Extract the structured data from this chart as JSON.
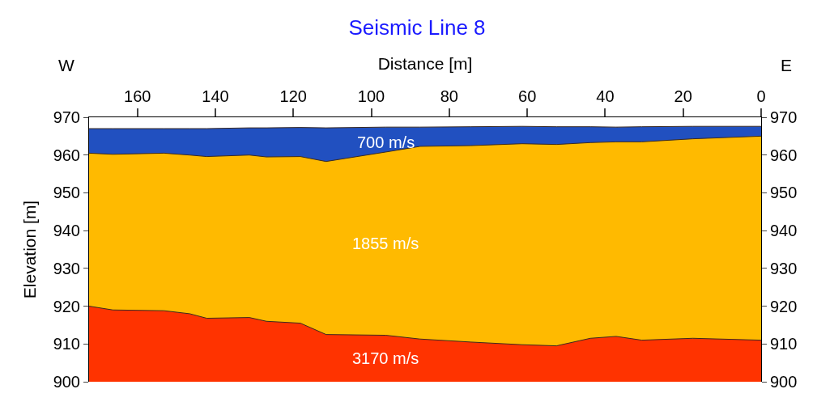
{
  "chart_data": {
    "type": "area",
    "title": "Seismic Line 8",
    "xlabel": "Distance [m]",
    "ylabel": "Elevation [m]",
    "x": [
      172.4,
      166.3,
      153.2,
      146.6,
      142.2,
      131.3,
      126.9,
      118.2,
      111.6,
      96.3,
      87.5,
      74.4,
      61.3,
      52.5,
      43.8,
      37.2,
      30.6,
      17.5,
      0
    ],
    "series": [
      {
        "name": "700 m/s",
        "color": "#2150c0",
        "values": [
          967,
          967,
          967,
          967,
          967,
          967.2,
          967.2,
          967.3,
          967.2,
          967.4,
          967.4,
          967.5,
          967.6,
          967.5,
          967.5,
          967.4,
          967.5,
          967.6,
          967.6
        ]
      },
      {
        "name": "1855 m/s",
        "color": "#ffba00",
        "values": [
          960.5,
          960.2,
          960.5,
          960,
          959.6,
          960,
          959.5,
          959.6,
          958.3,
          960.8,
          962.3,
          962.5,
          963,
          962.8,
          963.3,
          963.5,
          963.5,
          964.3,
          965
        ]
      },
      {
        "name": "3170 m/s",
        "color": "#ff3300",
        "values": [
          920,
          919,
          918.8,
          918,
          916.8,
          917,
          916,
          915.5,
          912.5,
          912.3,
          911.3,
          910.5,
          909.8,
          909.5,
          911.5,
          912,
          911,
          911.5,
          911
        ]
      }
    ],
    "xlim": [
      172.4,
      0
    ],
    "xticks": [
      0,
      20,
      40,
      60,
      80,
      100,
      120,
      140,
      160
    ],
    "ylim": [
      900,
      970
    ],
    "yticks": [
      900,
      910,
      920,
      930,
      940,
      950,
      960,
      970
    ],
    "y2lim": [
      900,
      970
    ],
    "y2ticks": [
      900,
      910,
      920,
      930,
      940,
      950,
      960,
      970
    ],
    "annotations": [
      "W",
      "E"
    ],
    "legend": false
  }
}
